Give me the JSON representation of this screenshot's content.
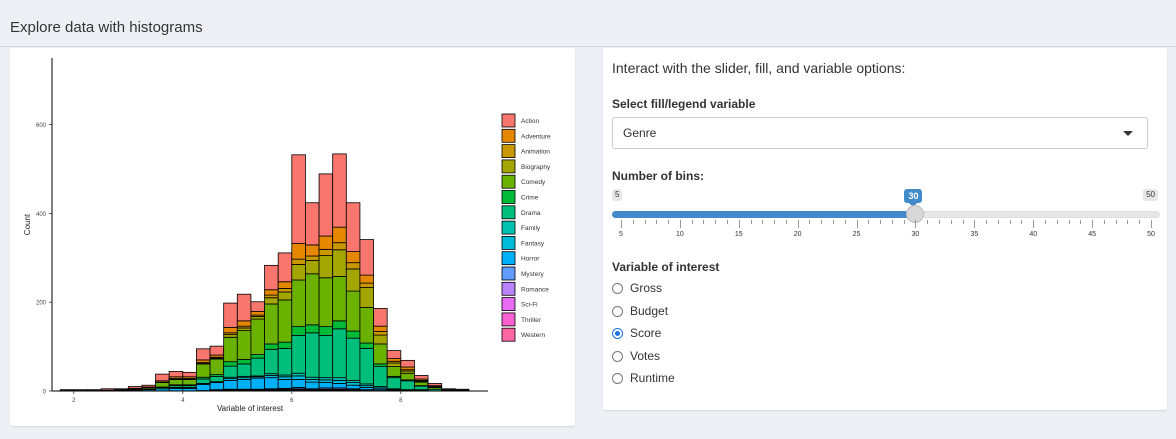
{
  "page": {
    "title": "Explore data with histograms"
  },
  "controls": {
    "heading": "Interact with the slider, fill, and variable options:",
    "fill_label": "Select fill/legend variable",
    "fill_value": "Genre",
    "bins_label": "Number of bins:",
    "bins": {
      "min": 5,
      "max": 50,
      "value": 30,
      "ticks": [
        "5",
        "10",
        "15",
        "20",
        "25",
        "30",
        "35",
        "40",
        "45",
        "50"
      ]
    },
    "variable_label": "Variable of interest",
    "variables": [
      {
        "label": "Gross",
        "checked": false
      },
      {
        "label": "Budget",
        "checked": false
      },
      {
        "label": "Score",
        "checked": true
      },
      {
        "label": "Votes",
        "checked": false
      },
      {
        "label": "Runtime",
        "checked": false
      }
    ]
  },
  "chart_data": {
    "type": "bar",
    "stacked": true,
    "xlabel": "Variable of interest",
    "ylabel": "Count",
    "xlim": [
      1.6,
      9.6
    ],
    "ylim": [
      0,
      750
    ],
    "x_ticks": [
      "2",
      "4",
      "6",
      "8"
    ],
    "y_ticks": [
      "0",
      "200",
      "400",
      "600"
    ],
    "legend_position": "right",
    "bin_width": 0.25,
    "bins_start": [
      1.75,
      2.0,
      2.25,
      2.5,
      2.75,
      3.0,
      3.25,
      3.5,
      3.75,
      4.0,
      4.25,
      4.5,
      4.75,
      5.0,
      5.25,
      5.5,
      5.75,
      6.0,
      6.25,
      6.5,
      6.75,
      7.0,
      7.25,
      7.5,
      7.75,
      8.0,
      8.25,
      8.5,
      8.75,
      9.0
    ],
    "series": [
      {
        "name": "Action",
        "color": "#F8766D",
        "values": [
          2,
          2,
          2,
          3,
          2,
          4,
          4,
          15,
          12,
          10,
          25,
          20,
          55,
          60,
          22,
          55,
          65,
          200,
          95,
          140,
          165,
          110,
          80,
          40,
          18,
          15,
          8,
          5,
          2,
          2
        ]
      },
      {
        "name": "Adventure",
        "color": "#E58700",
        "values": [
          0,
          0,
          0,
          1,
          1,
          1,
          2,
          3,
          4,
          4,
          6,
          5,
          12,
          12,
          8,
          12,
          15,
          35,
          25,
          30,
          35,
          25,
          18,
          12,
          6,
          6,
          3,
          2,
          1,
          0
        ]
      },
      {
        "name": "Animation",
        "color": "#C99800",
        "values": [
          0,
          0,
          0,
          0,
          0,
          0,
          0,
          1,
          1,
          1,
          2,
          2,
          4,
          4,
          3,
          6,
          8,
          12,
          10,
          14,
          16,
          14,
          10,
          8,
          4,
          3,
          2,
          1,
          0,
          0
        ]
      },
      {
        "name": "Biography",
        "color": "#A3A500",
        "values": [
          0,
          0,
          0,
          0,
          0,
          0,
          0,
          0,
          1,
          1,
          1,
          2,
          6,
          6,
          6,
          14,
          18,
          35,
          30,
          50,
          60,
          50,
          45,
          20,
          8,
          5,
          2,
          1,
          0,
          0
        ]
      },
      {
        "name": "Comedy",
        "color": "#6BB100",
        "values": [
          0,
          0,
          0,
          0,
          1,
          2,
          3,
          10,
          12,
          12,
          30,
          35,
          55,
          65,
          80,
          90,
          95,
          105,
          115,
          110,
          100,
          90,
          80,
          45,
          22,
          15,
          8,
          4,
          1,
          1
        ]
      },
      {
        "name": "Crime",
        "color": "#00BA38",
        "values": [
          0,
          0,
          0,
          0,
          0,
          0,
          0,
          1,
          2,
          2,
          4,
          4,
          10,
          10,
          8,
          12,
          14,
          20,
          18,
          20,
          18,
          16,
          12,
          6,
          3,
          2,
          1,
          0,
          0,
          0
        ]
      },
      {
        "name": "Drama",
        "color": "#00BF7D",
        "values": [
          0,
          0,
          0,
          0,
          0,
          1,
          1,
          3,
          4,
          4,
          10,
          12,
          25,
          28,
          40,
          55,
          60,
          85,
          100,
          95,
          110,
          95,
          80,
          45,
          25,
          20,
          8,
          4,
          1,
          1
        ]
      },
      {
        "name": "Family",
        "color": "#00C0AF",
        "values": [
          0,
          0,
          0,
          0,
          0,
          0,
          0,
          0,
          1,
          1,
          1,
          1,
          3,
          3,
          2,
          4,
          4,
          6,
          5,
          5,
          6,
          5,
          4,
          3,
          1,
          1,
          1,
          0,
          0,
          0
        ]
      },
      {
        "name": "Fantasy",
        "color": "#00BCD8",
        "values": [
          0,
          0,
          0,
          0,
          0,
          0,
          0,
          0,
          1,
          1,
          1,
          1,
          4,
          4,
          3,
          5,
          6,
          8,
          6,
          6,
          7,
          6,
          4,
          3,
          1,
          1,
          1,
          0,
          0,
          0
        ]
      },
      {
        "name": "Horror",
        "color": "#00B0F6",
        "values": [
          1,
          1,
          1,
          1,
          1,
          2,
          3,
          5,
          6,
          6,
          14,
          16,
          20,
          22,
          25,
          25,
          20,
          18,
          15,
          12,
          10,
          8,
          5,
          3,
          2,
          1,
          1,
          0,
          0,
          0
        ]
      },
      {
        "name": "Mystery",
        "color": "#619CFF",
        "values": [
          0,
          0,
          0,
          0,
          0,
          0,
          0,
          0,
          0,
          0,
          1,
          1,
          1,
          1,
          1,
          2,
          2,
          3,
          2,
          3,
          3,
          2,
          2,
          1,
          1,
          0,
          0,
          0,
          0,
          0
        ]
      },
      {
        "name": "Romance",
        "color": "#B983FF",
        "values": [
          0,
          0,
          0,
          0,
          0,
          0,
          0,
          0,
          0,
          0,
          0,
          1,
          1,
          1,
          1,
          1,
          1,
          2,
          1,
          1,
          1,
          1,
          1,
          0,
          0,
          0,
          0,
          0,
          0,
          0
        ]
      },
      {
        "name": "Sci-Fi",
        "color": "#E76BF3",
        "values": [
          0,
          0,
          0,
          0,
          0,
          0,
          0,
          0,
          0,
          0,
          0,
          1,
          1,
          1,
          1,
          1,
          1,
          1,
          1,
          1,
          1,
          1,
          0,
          0,
          0,
          0,
          0,
          0,
          0,
          0
        ]
      },
      {
        "name": "Thriller",
        "color": "#FD61D1",
        "values": [
          0,
          0,
          0,
          0,
          0,
          0,
          0,
          0,
          0,
          0,
          0,
          0,
          1,
          1,
          1,
          1,
          1,
          1,
          1,
          1,
          1,
          1,
          0,
          0,
          0,
          0,
          0,
          0,
          0,
          0
        ]
      },
      {
        "name": "Western",
        "color": "#FF67A4",
        "values": [
          0,
          0,
          0,
          0,
          0,
          0,
          0,
          0,
          0,
          0,
          0,
          0,
          0,
          0,
          0,
          0,
          1,
          1,
          0,
          1,
          1,
          0,
          0,
          0,
          0,
          0,
          0,
          0,
          0,
          0
        ]
      }
    ]
  }
}
